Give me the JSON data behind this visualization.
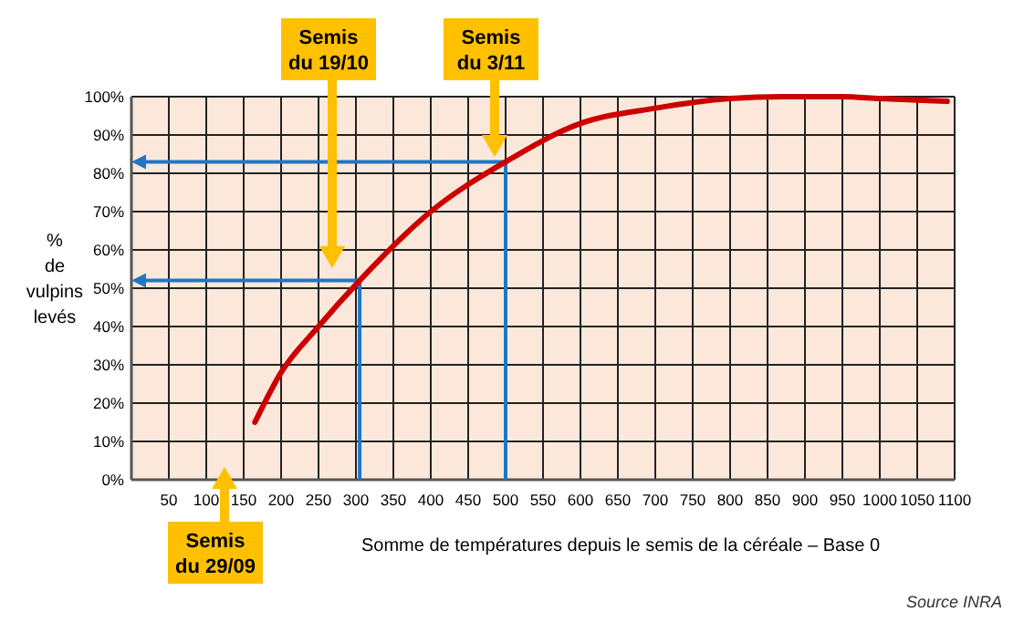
{
  "chart_data": {
    "type": "line",
    "xlabel": "Somme de températures depuis le semis de la céréale – Base 0",
    "ylabel": "%\nde\nvulpins\nlevés",
    "x": [
      165,
      200,
      250,
      305,
      400,
      500,
      600,
      700,
      800,
      870,
      950,
      1000,
      1090
    ],
    "series": [
      {
        "color": "#cc0000",
        "values": [
          15,
          28,
          40,
          52,
          70,
          83,
          93,
          97,
          99.5,
          100,
          100,
          99.5,
          98.8
        ]
      }
    ],
    "xlim": [
      0,
      1100
    ],
    "xticks": [
      {
        "value": 0,
        "label": null
      },
      50,
      100,
      150,
      200,
      250,
      300,
      350,
      400,
      450,
      500,
      550,
      600,
      650,
      700,
      750,
      800,
      850,
      900,
      950,
      1000,
      1050,
      1100
    ],
    "ylim": [
      0,
      100
    ],
    "yticks": [
      {
        "value": 0,
        "label": "0%"
      },
      {
        "value": 10,
        "label": "10%"
      },
      {
        "value": 20,
        "label": "20%"
      },
      {
        "value": 30,
        "label": "30%"
      },
      {
        "value": 40,
        "label": "40%"
      },
      {
        "value": 50,
        "label": "50%"
      },
      {
        "value": 60,
        "label": "60%"
      },
      {
        "value": 70,
        "label": "70%"
      },
      {
        "value": 80,
        "label": "80%"
      },
      {
        "value": 90,
        "label": "90%"
      },
      {
        "value": 100,
        "label": "100%"
      }
    ],
    "grid": true,
    "marker": "none",
    "line_style": "solid",
    "ref_lines": [
      {
        "axis": "x",
        "value": 305,
        "color": "#1f77c4"
      },
      {
        "axis": "y",
        "value": 52,
        "color": "#1f77c4"
      },
      {
        "axis": "x",
        "value": 500,
        "color": "#1f77c4"
      },
      {
        "axis": "y",
        "value": 83,
        "color": "#1f77c4"
      }
    ],
    "annotations": [
      "Semis\ndu 19/10",
      "Semis\ndu 3/11",
      "Semis\ndu 29/09",
      "Source INRA"
    ]
  }
}
